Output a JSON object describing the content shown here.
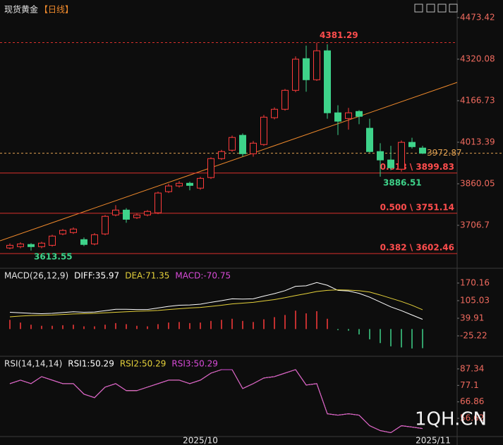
{
  "chart_data": [
    {
      "type": "candlestick",
      "title": "现货黄金",
      "subtitle": "【日线】",
      "categories": [
        null,
        null,
        null,
        null,
        null,
        null,
        null,
        null,
        null,
        null,
        null,
        null,
        null,
        null,
        null,
        null,
        null,
        null,
        "2025/10",
        null,
        null,
        null,
        null,
        null,
        null,
        null,
        null,
        null,
        null,
        null,
        null,
        null,
        null,
        null,
        null,
        null,
        null,
        null,
        null,
        null,
        "2025/11"
      ],
      "open": [
        3623,
        3628,
        3636,
        3628,
        3633,
        3675,
        3680,
        3654,
        3638,
        3675,
        3745,
        3763,
        3735,
        3745,
        3753,
        3831,
        3852,
        3862,
        3844,
        3883,
        3953,
        3984,
        4039,
        3971,
        4005,
        4104,
        4135,
        4205,
        4322,
        4244,
        4351,
        4122,
        4101,
        4127,
        4065,
        3979,
        3948,
        3914,
        4013,
        3992,
        null
      ],
      "high": [
        3640,
        3644,
        3641,
        3646,
        3672,
        3693,
        3699,
        3662,
        3678,
        3745,
        3781,
        3770,
        3750,
        3763,
        3831,
        3860,
        3870,
        3868,
        3886,
        3958,
        3985,
        4038,
        4046,
        4018,
        4114,
        4142,
        4210,
        4330,
        4370,
        4381.29,
        4375,
        4150,
        4140,
        4132,
        4100,
        4010,
        4000,
        4020,
        4030,
        4000,
        null
      ],
      "low": [
        3618,
        3622,
        3613.55,
        3622,
        3628,
        3670,
        3675,
        3630,
        3633,
        3670,
        3740,
        3716,
        3730,
        3740,
        3748,
        3826,
        3846,
        3836,
        3838,
        3878,
        3948,
        3978,
        3960,
        3960,
        4000,
        4098,
        4130,
        4198,
        4200,
        4240,
        4100,
        4040,
        4060,
        4080,
        3975,
        3886.51,
        3910,
        3905,
        3990,
        3970,
        null
      ],
      "close": [
        3633,
        3638,
        3628,
        3641,
        3667,
        3688,
        3693,
        3636,
        3672,
        3740,
        3763,
        3729,
        3745,
        3758,
        3826,
        3852,
        3862,
        3854,
        3880,
        3953,
        3979,
        4031,
        3971,
        4010,
        4106,
        4135,
        4205,
        4320,
        4244,
        4351,
        4122,
        4091,
        4122,
        4109,
        3979,
        3948,
        3919,
        4013,
        3997,
        3972.87,
        null
      ],
      "up_color": "#ff3b3b",
      "down_color": "#3ed38a",
      "ylim": [
        3550.8,
        4538.4
      ],
      "yticks": [
        3706.7,
        3860.05,
        4013.39,
        4166.73,
        4320.08,
        4473.42
      ],
      "fib_levels": [
        {
          "value": 3899.83,
          "label": "0.618 \\ 3899.83"
        },
        {
          "value": 3751.14,
          "label": "0.500 \\ 3751.14"
        },
        {
          "value": 3602.46,
          "label": "0.382 \\ 3602.46"
        }
      ],
      "high_label_index": 29,
      "low_label_indices": [
        2,
        35
      ],
      "last_index": 39,
      "watermark": "1QH.CN"
    },
    {
      "type": "macd",
      "indicator": "MACD(26,12,9)",
      "ylim": [
        -98.2,
        222.3
      ],
      "yticks": [
        -25.22,
        39.91,
        105.03,
        170.16
      ],
      "up_color": "#ff3b3b",
      "down_color": "#3ed38a",
      "series": [
        {
          "label": "DIFF:35.97",
          "color": "#ffffff",
          "kind": "line",
          "values": [
            62,
            60,
            58,
            57,
            58,
            61,
            64,
            62,
            63,
            68,
            73,
            73,
            72,
            72,
            78,
            84,
            88,
            89,
            92,
            99,
            105,
            112,
            111,
            112,
            122,
            131,
            142,
            158,
            160,
            172,
            162,
            143,
            141,
            132,
            118,
            100,
            82,
            68,
            52,
            35.97,
            null
          ]
        },
        {
          "label": "DEA:71.35",
          "color": "#e5d13a",
          "kind": "line",
          "values": [
            45,
            48,
            50,
            51,
            52,
            54,
            56,
            57,
            58,
            60,
            62,
            64,
            66,
            67,
            69,
            72,
            75,
            78,
            80,
            84,
            88,
            93,
            96,
            99,
            104,
            109,
            116,
            124,
            131,
            139,
            143,
            145,
            144,
            142,
            137,
            126,
            114,
            102,
            88,
            71.35,
            null
          ]
        },
        {
          "label": "MACD:-70.75",
          "color": "#d84bd8",
          "kind": "bar",
          "values": [
            34,
            24,
            16,
            12,
            12,
            14,
            16,
            10,
            10,
            16,
            22,
            18,
            12,
            10,
            18,
            24,
            26,
            22,
            24,
            30,
            34,
            38,
            30,
            26,
            36,
            44,
            52,
            68,
            58,
            66,
            38,
            -4,
            -6,
            -20,
            -38,
            -52,
            -64,
            -68,
            -72,
            -70.75,
            null
          ]
        }
      ]
    },
    {
      "type": "line",
      "indicator": "RSI(14,14,14)",
      "ylim": [
        45.3,
        94.75
      ],
      "yticks": [
        56.62,
        66.86,
        77.1,
        87.34
      ],
      "series": [
        {
          "label": "RSI1:50.29",
          "color": "#ffffff",
          "values": [
            78.19,
            80.37,
            78.19,
            82.55,
            80.37,
            78.19,
            78.19,
            71.66,
            69.48,
            76.01,
            78.19,
            73.83,
            73.83,
            76.01,
            78.19,
            80.37,
            80.37,
            78.19,
            80.37,
            84.73,
            86.9,
            86.9,
            75.14,
            78.19,
            81.68,
            82.55,
            84.73,
            86.9,
            77.32,
            78.19,
            59.46,
            58.58,
            59.46,
            58.58,
            52.05,
            49.0,
            47.7,
            52.05,
            51.2,
            50.29,
            null
          ]
        },
        {
          "label": "RSI2:50.29",
          "color": "#e5d13a",
          "values": [
            78.19,
            80.37,
            78.19,
            82.55,
            80.37,
            78.19,
            78.19,
            71.66,
            69.48,
            76.01,
            78.19,
            73.83,
            73.83,
            76.01,
            78.19,
            80.37,
            80.37,
            78.19,
            80.37,
            84.73,
            86.9,
            86.9,
            75.14,
            78.19,
            81.68,
            82.55,
            84.73,
            86.9,
            77.32,
            78.19,
            59.46,
            58.58,
            59.46,
            58.58,
            52.05,
            49.0,
            47.7,
            52.05,
            51.2,
            50.29,
            null
          ]
        },
        {
          "label": "RSI3:50.29",
          "color": "#d84bd8",
          "values": [
            78.19,
            80.37,
            78.19,
            82.55,
            80.37,
            78.19,
            78.19,
            71.66,
            69.48,
            76.01,
            78.19,
            73.83,
            73.83,
            76.01,
            78.19,
            80.37,
            80.37,
            78.19,
            80.37,
            84.73,
            86.9,
            86.9,
            75.14,
            78.19,
            81.68,
            82.55,
            84.73,
            86.9,
            77.32,
            78.19,
            59.46,
            58.58,
            59.46,
            58.58,
            52.05,
            49.0,
            47.7,
            52.05,
            51.2,
            50.29,
            null
          ]
        }
      ]
    }
  ]
}
